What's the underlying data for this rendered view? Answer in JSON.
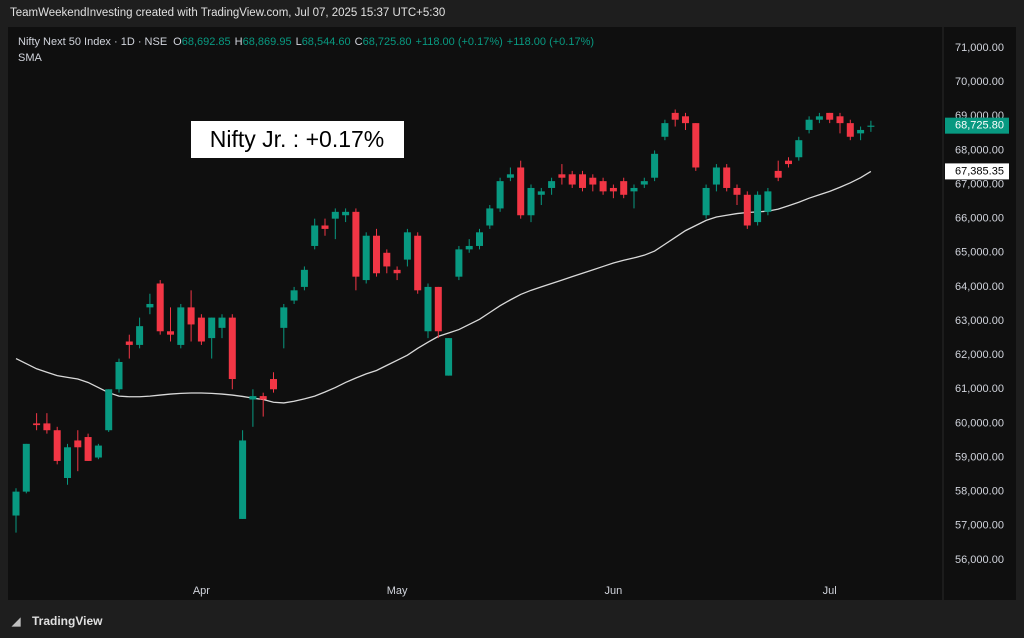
{
  "banner": "TeamWeekendInvesting created with TradingView.com, Jul 07, 2025 15:37 UTC+5:30",
  "footer": "TradingView",
  "chart_data": {
    "type": "candlestick",
    "title": "Nifty Next 50 Index · 1D · NSE",
    "ohlc_legend": [
      {
        "key": "O",
        "text": "68,692.85"
      },
      {
        "key": "H",
        "text": "68,869.95"
      },
      {
        "key": "L",
        "text": "68,544.60"
      },
      {
        "key": "C",
        "text": "68,725.80"
      }
    ],
    "change_labels": [
      "+118.00 (+0.17%)",
      "+118.00 (+0.17%)"
    ],
    "annotation": "Nifty Jr. : +0.17%",
    "categories": [
      null,
      null,
      null,
      null,
      null,
      null,
      null,
      null,
      null,
      null,
      null,
      null,
      null,
      null,
      null,
      null,
      null,
      null,
      "Apr",
      null,
      null,
      null,
      null,
      null,
      null,
      null,
      null,
      null,
      null,
      null,
      null,
      null,
      null,
      null,
      null,
      null,
      null,
      "May",
      null,
      null,
      null,
      null,
      null,
      null,
      null,
      null,
      null,
      null,
      null,
      null,
      null,
      null,
      null,
      null,
      null,
      null,
      null,
      null,
      "Jun",
      null,
      null,
      null,
      null,
      null,
      null,
      null,
      null,
      null,
      null,
      null,
      null,
      null,
      null,
      null,
      null,
      null,
      null,
      null,
      null,
      "Jul",
      null,
      null,
      null,
      null
    ],
    "open": [
      57300,
      58000,
      60000,
      60000,
      59800,
      58400,
      59500,
      59600,
      59000,
      59800,
      61000,
      62400,
      62300,
      63400,
      64100,
      62700,
      62300,
      63400,
      63100,
      62500,
      62800,
      63100,
      57200,
      60700,
      60800,
      61300,
      62800,
      63600,
      64000,
      65200,
      65800,
      66000,
      66100,
      66200,
      64200,
      65500,
      65000,
      64500,
      64800,
      65500,
      62700,
      64000,
      61400,
      64300,
      65100,
      65200,
      65800,
      66300,
      67200,
      67500,
      66100,
      66700,
      66900,
      67300,
      67300,
      67300,
      67200,
      67100,
      66900,
      67100,
      66800,
      67000,
      67200,
      68400,
      69100,
      69000,
      68800,
      66100,
      67000,
      67500,
      66900,
      66700,
      65900,
      66200,
      67400,
      67700,
      67800,
      68600,
      68900,
      69100,
      69000,
      68800,
      68500,
      68692.85
    ],
    "high": [
      58100,
      59400,
      60300,
      60300,
      59900,
      59400,
      59800,
      59700,
      59400,
      61000,
      61900,
      62600,
      63100,
      63800,
      64200,
      63400,
      63500,
      63900,
      63200,
      63100,
      63200,
      63200,
      59800,
      61000,
      60900,
      61500,
      63500,
      64000,
      64600,
      66000,
      66000,
      66300,
      66300,
      66300,
      65600,
      65700,
      65100,
      64600,
      65700,
      65600,
      64100,
      64000,
      62500,
      65200,
      65400,
      65700,
      66400,
      67200,
      67500,
      67700,
      67000,
      66900,
      67200,
      67600,
      67400,
      67400,
      67300,
      67200,
      67000,
      67200,
      67000,
      67200,
      68000,
      68900,
      69200,
      69100,
      68800,
      67000,
      67600,
      67600,
      67000,
      66800,
      66800,
      66900,
      67700,
      67800,
      68400,
      69000,
      69100,
      69100,
      69100,
      68900,
      68700,
      68869.95
    ],
    "low": [
      56800,
      57950,
      59800,
      59700,
      58800,
      58200,
      58600,
      58900,
      58950,
      59750,
      60900,
      61900,
      62200,
      63200,
      62600,
      62400,
      62200,
      62400,
      62300,
      61900,
      62500,
      61000,
      57200,
      59900,
      60200,
      60900,
      62200,
      63500,
      63900,
      65100,
      65500,
      65400,
      65900,
      63900,
      64100,
      64300,
      64400,
      64200,
      64600,
      63800,
      62500,
      62500,
      61400,
      64200,
      65000,
      65100,
      65700,
      66200,
      67100,
      66000,
      65900,
      66400,
      66700,
      67000,
      66900,
      66800,
      66800,
      66700,
      66600,
      66600,
      66300,
      66900,
      67100,
      68300,
      68700,
      68600,
      67400,
      66000,
      66800,
      66800,
      66400,
      65700,
      65800,
      66100,
      67100,
      67500,
      67700,
      68500,
      68800,
      68800,
      68500,
      68300,
      68300,
      68544.6
    ],
    "close": [
      58000,
      59400,
      59950,
      59800,
      58900,
      59300,
      59300,
      58900,
      59350,
      61000,
      61800,
      62300,
      62850,
      63500,
      62700,
      62600,
      63400,
      62900,
      62400,
      63100,
      63100,
      61300,
      59500,
      60800,
      60700,
      61000,
      63400,
      63900,
      64500,
      65800,
      65700,
      66200,
      66200,
      64300,
      65500,
      64400,
      64600,
      64400,
      65600,
      63900,
      64000,
      62700,
      62500,
      65100,
      65200,
      65600,
      66300,
      67100,
      67300,
      66100,
      66900,
      66800,
      67100,
      67200,
      67000,
      66900,
      67000,
      66800,
      66800,
      66700,
      66900,
      67100,
      67900,
      68800,
      68900,
      68800,
      67500,
      66900,
      67500,
      66900,
      66700,
      65800,
      66700,
      66800,
      67200,
      67600,
      68300,
      68900,
      69000,
      68900,
      68800,
      68400,
      68600,
      68725.8
    ],
    "up_color": "#089981",
    "down_color": "#f23645",
    "sma": {
      "name": "SMA",
      "color": "#d9d9d9",
      "values": [
        61900,
        61750,
        61600,
        61500,
        61400,
        61350,
        61300,
        61200,
        61050,
        60900,
        60800,
        60780,
        60780,
        60800,
        60830,
        60860,
        60880,
        60890,
        60890,
        60880,
        60860,
        60830,
        60790,
        60740,
        60700,
        60620,
        60600,
        60650,
        60720,
        60800,
        60920,
        61050,
        61200,
        61330,
        61450,
        61550,
        61700,
        61850,
        62000,
        62200,
        62380,
        62550,
        62650,
        62750,
        62900,
        63050,
        63250,
        63450,
        63620,
        63780,
        63900,
        64000,
        64100,
        64200,
        64300,
        64400,
        64500,
        64600,
        64700,
        64780,
        64850,
        64930,
        65050,
        65250,
        65450,
        65650,
        65800,
        65950,
        66050,
        66100,
        66150,
        66180,
        66200,
        66220,
        66280,
        66380,
        66480,
        66600,
        66700,
        66800,
        66920,
        67050,
        67200,
        67385.35
      ],
      "last_label": "67,385.35"
    },
    "last_close_label": "68,725.80",
    "ylim": [
      55000,
      71500
    ],
    "yticks": [
      {
        "value": 56000,
        "label": "56,000.00"
      },
      {
        "value": 57000,
        "label": "57,000.00"
      },
      {
        "value": 58000,
        "label": "58,000.00"
      },
      {
        "value": 59000,
        "label": "59,000.00"
      },
      {
        "value": 60000,
        "label": "60,000.00"
      },
      {
        "value": 61000,
        "label": "61,000.00"
      },
      {
        "value": 62000,
        "label": "62,000.00"
      },
      {
        "value": 63000,
        "label": "63,000.00"
      },
      {
        "value": 64000,
        "label": "64,000.00"
      },
      {
        "value": 65000,
        "label": "65,000.00"
      },
      {
        "value": 66000,
        "label": "66,000.00"
      },
      {
        "value": 67000,
        "label": "67,000.00"
      },
      {
        "value": 68000,
        "label": "68,000.00"
      },
      {
        "value": 69000,
        "label": "69,000.00"
      },
      {
        "value": 70000,
        "label": "70,000.00"
      },
      {
        "value": 71000,
        "label": "71,000.00"
      }
    ]
  }
}
